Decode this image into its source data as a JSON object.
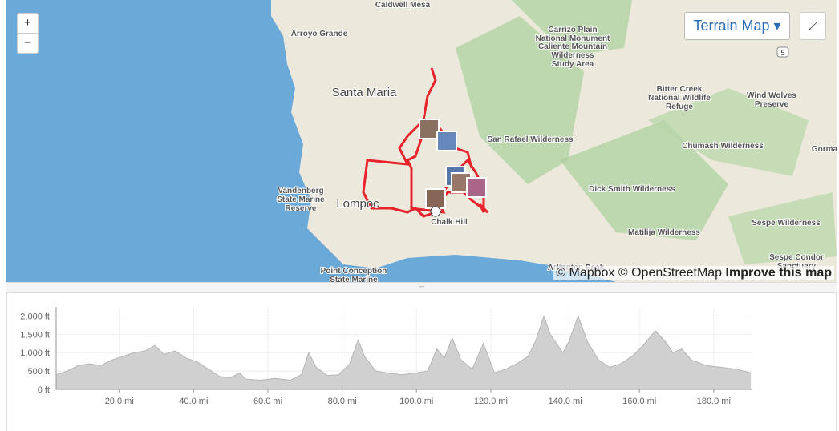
{
  "map": {
    "zoom_in": "+",
    "zoom_out": "−",
    "map_type": "Terrain Map",
    "labels": {
      "caldwell": "Caldwell Mesa",
      "arroyo": "Arroyo Grande",
      "carrizo": [
        "Carrizo Plain",
        "National Monument"
      ],
      "caliente": [
        "Caliente Mountain",
        "Wilderness",
        "Study Area"
      ],
      "santa_maria": "Santa Maria",
      "bitter": [
        "Bitter Creek",
        "National Wildlife",
        "Refuge"
      ],
      "wind": [
        "Wind Wolves",
        "Preserve"
      ],
      "san_rafael": "San Rafael Wilderness",
      "chumash": "Chumash Wilderness",
      "gorma": "Gorma",
      "vandenberg": [
        "Vandenberg",
        "State Marine",
        "Reserve"
      ],
      "lompoc": "Lompoc",
      "chalk": "Chalk Hill",
      "dick": "Dick Smith Wilderness",
      "sespe": "Sespe Wilderness",
      "matilija": "Matilija Wilderness",
      "condor": [
        "Sespe Condor",
        "Sanctuary"
      ],
      "arlington": "Arlington Peak",
      "conception": [
        "Point Conception",
        "State Marine"
      ],
      "shield": "5"
    },
    "attribution": {
      "mapbox": "© Mapbox",
      "osm": "© OpenStreetMap",
      "improve": "Improve this map"
    }
  },
  "chart_data": {
    "type": "area",
    "color": "#d0d0d0",
    "x": [
      3,
      6,
      9,
      12,
      15,
      18,
      21,
      24,
      27,
      29.6,
      32,
      35,
      38,
      41,
      44,
      47,
      50,
      52.4,
      54,
      58,
      62,
      66,
      69,
      71,
      73,
      76,
      79,
      82,
      84.3,
      86,
      89,
      92,
      96,
      100,
      103,
      105.5,
      107.5,
      109.6,
      112,
      115,
      118,
      121,
      124,
      127,
      130,
      132,
      134.3,
      136,
      139.4,
      141,
      143.5,
      146,
      149,
      152,
      155,
      158,
      161,
      164.3,
      167,
      169,
      171.4,
      174,
      178,
      182,
      186,
      190
    ],
    "values": [
      400,
      500,
      650,
      700,
      650,
      800,
      900,
      1000,
      1050,
      1200,
      950,
      1050,
      850,
      750,
      550,
      350,
      320,
      450,
      280,
      250,
      300,
      250,
      400,
      1000,
      600,
      380,
      400,
      700,
      1350,
      900,
      500,
      450,
      400,
      450,
      500,
      1100,
      850,
      1400,
      800,
      550,
      1250,
      450,
      550,
      700,
      900,
      1300,
      2000,
      1500,
      1000,
      1300,
      2000,
      1300,
      800,
      600,
      700,
      900,
      1200,
      1600,
      1300,
      1000,
      1100,
      800,
      650,
      600,
      550,
      450
    ],
    "xlim": [
      3,
      190.4
    ],
    "ylim": [
      0,
      2250
    ],
    "xticks": [
      {
        "value": 20,
        "label": "20.0 mi"
      },
      {
        "value": 40,
        "label": "40.0 mi"
      },
      {
        "value": 60,
        "label": "60.0 mi"
      },
      {
        "value": 80,
        "label": "80.0 mi"
      },
      {
        "value": 100,
        "label": "100.0 mi"
      },
      {
        "value": 120,
        "label": "120.0 mi"
      },
      {
        "value": 140,
        "label": "140.0 mi"
      },
      {
        "value": 160,
        "label": "160.0 mi"
      },
      {
        "value": 180,
        "label": "180.0 mi"
      }
    ],
    "yticks": [
      {
        "value": 0,
        "label": "0 ft"
      },
      {
        "value": 500,
        "label": "500 ft"
      },
      {
        "value": 1000,
        "label": "1,000 ft"
      },
      {
        "value": 1500,
        "label": "1,500 ft"
      },
      {
        "value": 2000,
        "label": "2,000 ft"
      }
    ],
    "grid": true
  }
}
